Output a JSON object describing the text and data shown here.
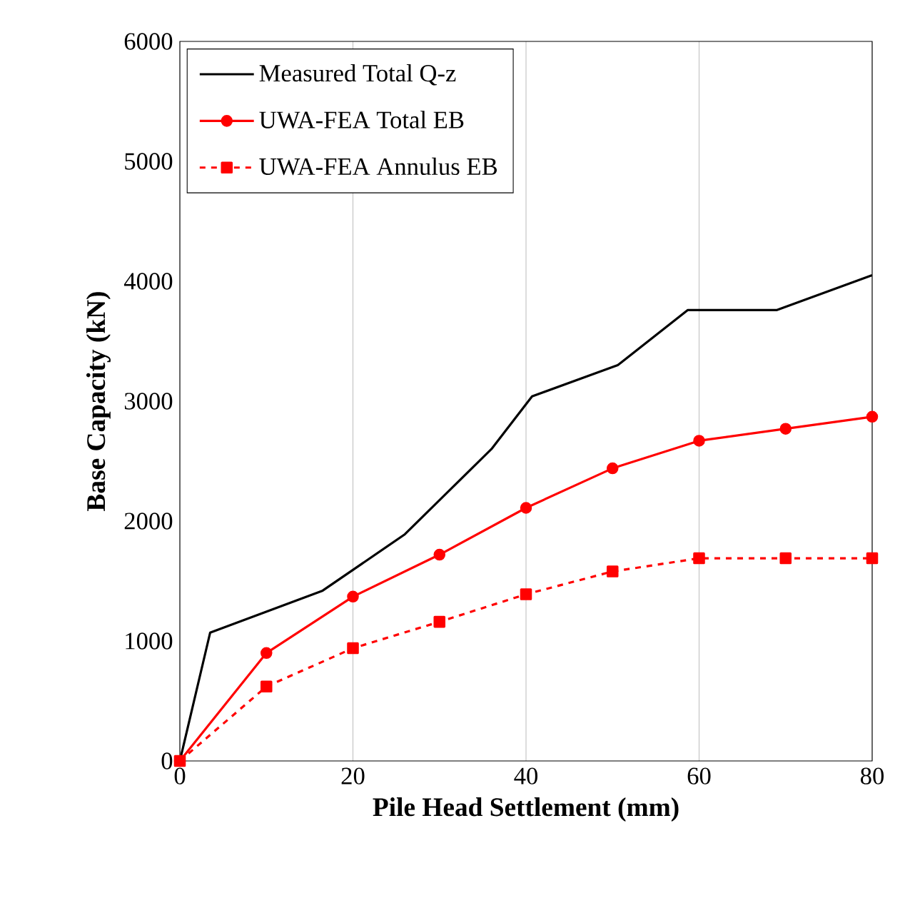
{
  "chart_data": {
    "type": "line",
    "xlabel": "Pile Head Settlement (mm)",
    "ylabel": "Base Capacity (kN)",
    "xlim": [
      0,
      80
    ],
    "ylim": [
      0,
      6000
    ],
    "xticks": [
      0,
      20,
      40,
      60,
      80
    ],
    "yticks": [
      0,
      1000,
      2000,
      3000,
      4000,
      5000,
      6000
    ],
    "grid": "x",
    "legend": "top left",
    "series": [
      {
        "name": "Measured Total Q-z",
        "color": "#000000",
        "marker": "none",
        "line_style": "solid",
        "x": [
          0,
          3.5,
          16.5,
          26,
          36,
          40.7,
          50.6,
          58.7,
          69,
          80
        ],
        "values": [
          0,
          1070,
          1420,
          1890,
          2600,
          3040,
          3300,
          3760,
          3760,
          4050
        ]
      },
      {
        "name": "UWA-FEA Total EB",
        "color": "#ff0000",
        "marker": "circle",
        "line_style": "solid",
        "x": [
          0,
          10,
          20,
          30,
          40,
          50,
          60,
          70,
          80
        ],
        "values": [
          0,
          900,
          1370,
          1720,
          2110,
          2440,
          2670,
          2770,
          2870
        ]
      },
      {
        "name": "UWA-FEA Annulus EB",
        "color": "#ff0000",
        "marker": "square",
        "line_style": "dashed",
        "x": [
          0,
          10,
          20,
          30,
          40,
          50,
          60,
          70,
          80
        ],
        "values": [
          0,
          620,
          940,
          1160,
          1390,
          1580,
          1690,
          1690,
          1690
        ]
      }
    ]
  }
}
